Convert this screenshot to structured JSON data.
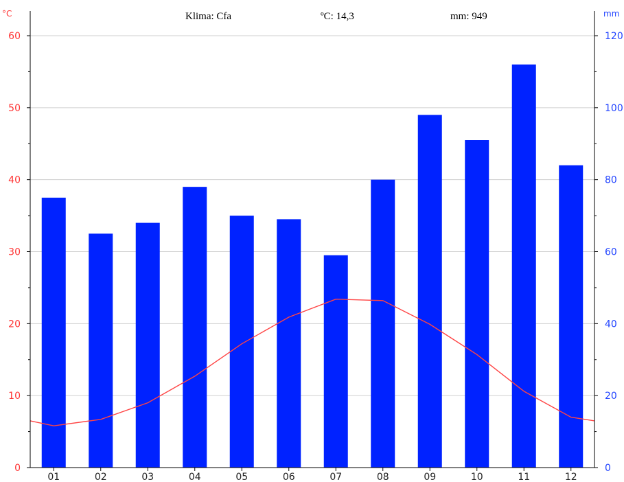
{
  "chart_data": {
    "type": "bar",
    "header": {
      "climate": "Klima: Cfa",
      "temperature": "ºC: 14,3",
      "precipitation": "mm: 949"
    },
    "categories": [
      "01",
      "02",
      "03",
      "04",
      "05",
      "06",
      "07",
      "08",
      "09",
      "10",
      "11",
      "12"
    ],
    "left_axis": {
      "unit": "°C",
      "range": [
        0,
        60
      ],
      "ticks": [
        "0",
        "10",
        "20",
        "30",
        "40",
        "50",
        "60"
      ],
      "color": "#ff3333"
    },
    "right_axis": {
      "unit": "mm",
      "range": [
        0,
        120
      ],
      "ticks": [
        "0",
        "20",
        "40",
        "60",
        "80",
        "100",
        "120"
      ],
      "color": "#2244ff"
    },
    "series": [
      {
        "type": "bar",
        "axis": "right",
        "color": "#0022ff",
        "values": [
          75,
          65,
          68,
          78,
          70,
          69,
          59,
          80,
          98,
          91,
          112,
          84
        ]
      },
      {
        "type": "line",
        "axis": "left",
        "color": "#ff4444",
        "values": [
          5.8,
          6.7,
          9.0,
          12.7,
          17.2,
          20.9,
          23.4,
          23.2,
          19.9,
          15.7,
          10.6,
          7.0
        ],
        "edge_values": [
          6.5,
          6.5
        ]
      }
    ],
    "grid": true
  }
}
